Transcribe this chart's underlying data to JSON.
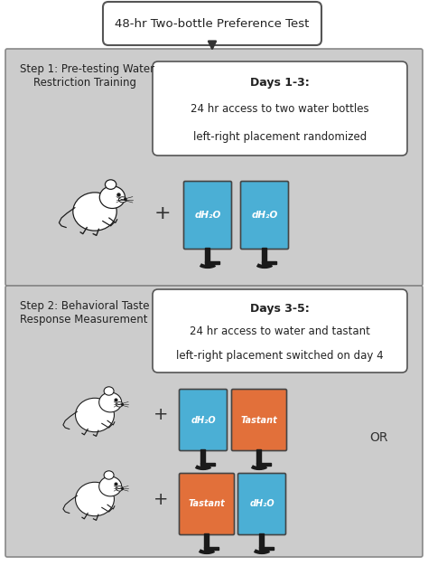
{
  "title_box_text": "48-hr Two-bottle Preference Test",
  "step1_label": "Step 1: Pre-testing Water\n    Restriction Training",
  "step1_box_line1": "Days 1-3:",
  "step1_box_line2": "24 hr access to two water bottles",
  "step1_box_line3": "left-right placement randomized",
  "step2_label": "Step 2: Behavioral Taste\nResponse Measurement",
  "step2_box_line1": "Days 3-5:",
  "step2_box_line2": "24 hr access to water and tastant",
  "step2_box_line3": "left-right placement switched on day 4",
  "blue_color": "#4BAFD5",
  "orange_color": "#E2703A",
  "panel_bg": "#D0D0D0",
  "outer_bg": "#FFFFFF",
  "box_bg": "#F5F5F5",
  "label_dh2o": "dH₂O",
  "label_tastant": "Tastant",
  "or_text": "OR",
  "text_color": "#222222",
  "border_color": "#888888",
  "spout_color": "#1A1A1A"
}
